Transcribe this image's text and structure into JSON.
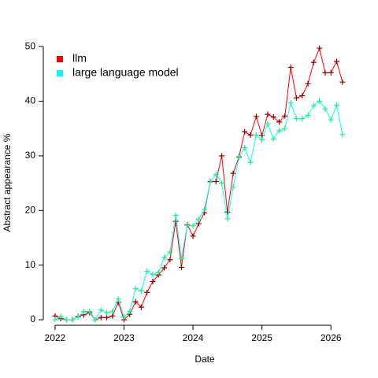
{
  "chart_data": {
    "type": "line",
    "x_label": "Date",
    "y_label": "Abstract appearance %",
    "x": [
      2022,
      2022.083,
      2022.167,
      2022.25,
      2022.333,
      2022.417,
      2022.5,
      2022.583,
      2022.667,
      2022.75,
      2022.833,
      2022.917,
      2023,
      2023.083,
      2023.167,
      2023.25,
      2023.333,
      2023.417,
      2023.5,
      2023.583,
      2023.667,
      2023.75,
      2023.833,
      2023.917,
      2024,
      2024.083,
      2024.167,
      2024.25,
      2024.333,
      2024.417,
      2024.5,
      2024.583,
      2024.667,
      2024.75,
      2024.833,
      2024.917,
      2025,
      2025.083,
      2025.167,
      2025.25,
      2025.333,
      2025.417,
      2025.5,
      2025.583,
      2025.667,
      2025.75,
      2025.833,
      2025.917,
      2026,
      2026.083,
      2026.167
    ],
    "series": [
      {
        "name": "llm",
        "color": "#ff0000",
        "marker_color": "#8b0000",
        "values": [
          0.7,
          0.2,
          0,
          0,
          0.6,
          0.9,
          1.3,
          0,
          0.4,
          0.4,
          0.7,
          3.2,
          0,
          1.0,
          3.3,
          2.3,
          5.0,
          7.0,
          8.2,
          9.5,
          11.0,
          18.0,
          9.6,
          17.4,
          15.3,
          17.6,
          19.6,
          25.3,
          25.3,
          30.0,
          19.7,
          26.8,
          29.8,
          34.4,
          33.8,
          37.2,
          33.7,
          37.6,
          37.1,
          36.2,
          37.3,
          46.2,
          40.6,
          41.0,
          43.2,
          47.1,
          49.7,
          45.2,
          45.2,
          47.3,
          43.5
        ]
      },
      {
        "name": "large language model",
        "color": "#00ffff",
        "marker_color": "#22ee88",
        "values": [
          0,
          0.6,
          0,
          0,
          0.5,
          1.5,
          1.5,
          0,
          1.8,
          1.3,
          1.5,
          3.8,
          0.5,
          1.5,
          5.7,
          5.3,
          8.9,
          8.3,
          8.7,
          11.4,
          12.4,
          19.1,
          11.2,
          17.3,
          17.2,
          18.4,
          20.2,
          25.2,
          26.6,
          25.0,
          18.5,
          24.3,
          29.7,
          31.5,
          28.8,
          33.8,
          32.9,
          35.9,
          33.1,
          34.6,
          35.0,
          39.7,
          36.8,
          36.8,
          37.4,
          39.2,
          40.0,
          38.6,
          36.6,
          39.3,
          33.9
        ]
      }
    ],
    "xlim": [
      2021.83,
      2026.34
    ],
    "xticks": [
      2022,
      2023,
      2024,
      2025,
      2026
    ],
    "ylim": [
      -1.0,
      51.6
    ],
    "yticks": [
      0,
      10,
      20,
      30,
      40,
      50
    ],
    "grid": false,
    "legend": "top-left"
  }
}
